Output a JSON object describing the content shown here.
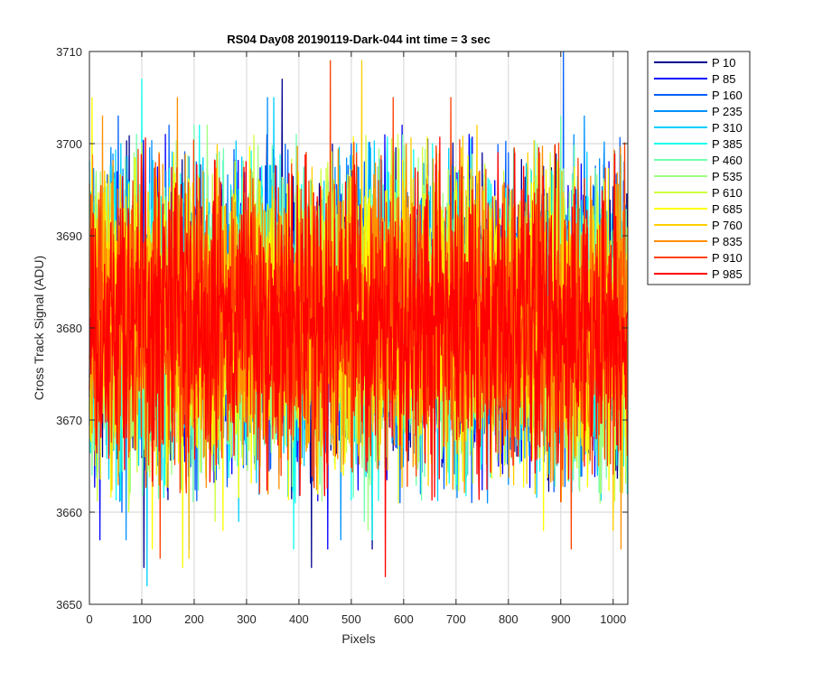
{
  "chart_data": {
    "type": "line",
    "title": "RS04 Day08 20190119-Dark-044 int time = 3 sec",
    "xlabel": "Pixels",
    "ylabel": "Cross Track Signal (ADU)",
    "xlim": [
      0,
      1028
    ],
    "ylim": [
      3650,
      3710
    ],
    "xticks": [
      0,
      100,
      200,
      300,
      400,
      500,
      600,
      700,
      800,
      900,
      1000
    ],
    "yticks": [
      3650,
      3660,
      3670,
      3680,
      3690,
      3700,
      3710
    ],
    "grid": true,
    "legend_position": "outside-top-right",
    "n_points": 1028,
    "noise_model": {
      "mean": 3681,
      "typical_range": [
        3664,
        3698
      ]
    },
    "series": [
      {
        "name": "P 10",
        "color": "#00008F",
        "extremes": [
          [
            104,
            3654
          ],
          [
            368,
            3707
          ],
          [
            424,
            3654
          ],
          [
            540,
            3656
          ]
        ]
      },
      {
        "name": "P 85",
        "color": "#0000FF",
        "extremes": [
          [
            20,
            3657
          ],
          [
            145,
            3701
          ],
          [
            190,
            3656
          ],
          [
            455,
            3656
          ],
          [
            597,
            3702
          ],
          [
            725,
            3701
          ]
        ]
      },
      {
        "name": "P 160",
        "color": "#0060FF",
        "extremes": [
          [
            55,
            3703
          ],
          [
            62,
            3660
          ],
          [
            152,
            3702
          ],
          [
            500,
            3700
          ],
          [
            800,
            3699
          ],
          [
            905,
            3710
          ]
        ]
      },
      {
        "name": "P 235",
        "color": "#0090FF",
        "extremes": [
          [
            70,
            3657
          ],
          [
            340,
            3705
          ],
          [
            480,
            3657
          ],
          [
            760,
            3661
          ],
          [
            945,
            3703
          ]
        ]
      },
      {
        "name": "P 310",
        "color": "#00CFFF",
        "extremes": [
          [
            60,
            3700
          ],
          [
            110,
            3652
          ],
          [
            285,
            3659
          ],
          [
            352,
            3705
          ],
          [
            510,
            3700
          ],
          [
            970,
            3664
          ]
        ]
      },
      {
        "name": "P 385",
        "color": "#10FFEF",
        "extremes": [
          [
            100,
            3707
          ],
          [
            210,
            3702
          ],
          [
            390,
            3656
          ],
          [
            540,
            3657
          ],
          [
            655,
            3700
          ]
        ]
      },
      {
        "name": "P 460",
        "color": "#6FFFAF",
        "extremes": [
          [
            90,
            3701
          ],
          [
            200,
            3702
          ],
          [
            395,
            3701
          ],
          [
            525,
            3659
          ],
          [
            900,
            3703
          ]
        ]
      },
      {
        "name": "P 535",
        "color": "#9FFF80",
        "extremes": [
          [
            85,
            3699
          ],
          [
            225,
            3702
          ],
          [
            532,
            3658
          ],
          [
            855,
            3700
          ],
          [
            975,
            3661
          ]
        ]
      },
      {
        "name": "P 610",
        "color": "#CFFF40",
        "extremes": [
          [
            75,
            3660
          ],
          [
            240,
            3659
          ],
          [
            590,
            3661
          ],
          [
            880,
            3699
          ]
        ]
      },
      {
        "name": "P 685",
        "color": "#FFFF00",
        "extremes": [
          [
            5,
            3705
          ],
          [
            120,
            3656
          ],
          [
            178,
            3654
          ],
          [
            255,
            3658
          ],
          [
            867,
            3658
          ]
        ]
      },
      {
        "name": "P 760",
        "color": "#FFCF00",
        "extremes": [
          [
            190,
            3655
          ],
          [
            520,
            3709
          ],
          [
            740,
            3702
          ],
          [
            1000,
            3658
          ]
        ]
      },
      {
        "name": "P 835",
        "color": "#FF8F00",
        "extremes": [
          [
            25,
            3703
          ],
          [
            168,
            3705
          ],
          [
            605,
            3700
          ],
          [
            860,
            3699
          ],
          [
            1015,
            3656
          ]
        ]
      },
      {
        "name": "P 910",
        "color": "#FF4000",
        "extremes": [
          [
            135,
            3655
          ],
          [
            460,
            3709
          ],
          [
            580,
            3705
          ],
          [
            690,
            3705
          ],
          [
            920,
            3656
          ]
        ]
      },
      {
        "name": "P 985",
        "color": "#FF0000",
        "extremes": [
          [
            565,
            3653
          ],
          [
            780,
            3699
          ],
          [
            945,
            3665
          ]
        ]
      }
    ]
  }
}
